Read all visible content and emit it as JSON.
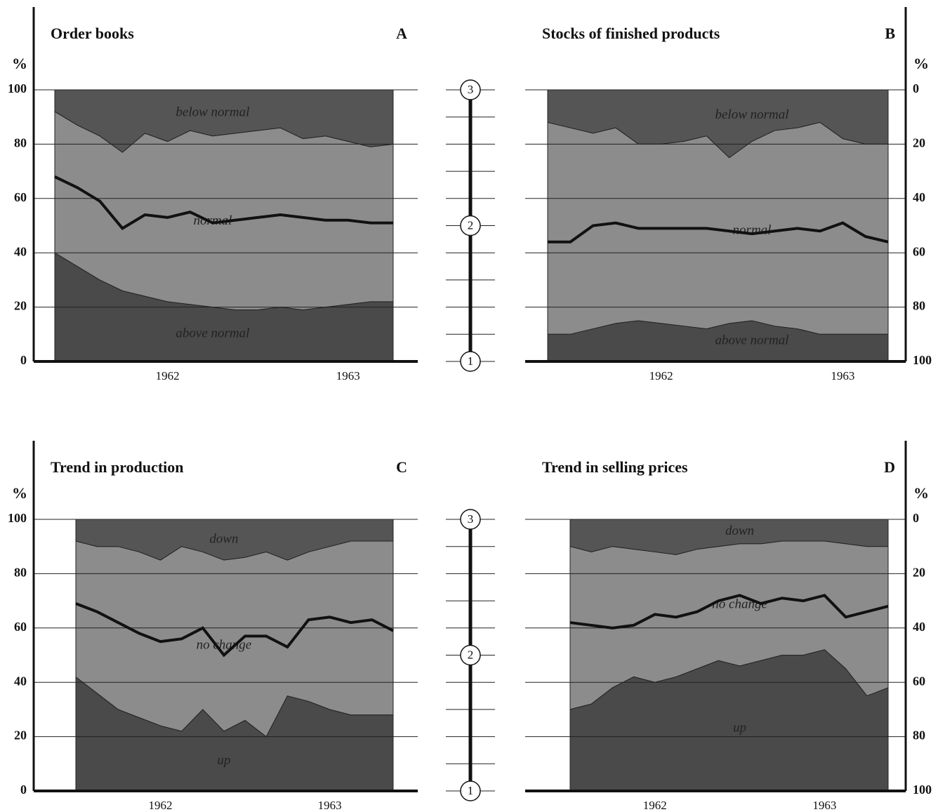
{
  "chart_data": [
    {
      "type": "area",
      "title": "Order books",
      "label": "A",
      "ylabel": "%",
      "axis_side": "left",
      "categories": [
        null,
        null,
        null,
        null,
        null,
        "1962",
        null,
        null,
        null,
        null,
        null,
        null,
        null,
        "1963",
        null,
        null
      ],
      "ylim": [
        0,
        100
      ],
      "yticks": [
        0,
        20,
        40,
        60,
        80,
        100
      ],
      "series": [
        {
          "name": "above normal",
          "color": "#4a4a4a",
          "values": [
            40,
            35,
            30,
            26,
            24,
            22,
            21,
            20,
            19,
            19,
            20,
            19,
            20,
            21,
            22,
            22
          ]
        },
        {
          "name": "normal",
          "color": "#8c8c8c",
          "values": [
            52,
            52,
            53,
            51,
            60,
            59,
            64,
            63,
            65,
            66,
            66,
            63,
            63,
            60,
            57,
            58
          ]
        },
        {
          "name": "below normal",
          "color": "#555555",
          "values": [
            8,
            13,
            17,
            23,
            16,
            19,
            15,
            17,
            16,
            15,
            14,
            18,
            17,
            19,
            21,
            20
          ]
        }
      ],
      "line": {
        "color": "#111111",
        "values": [
          68,
          64,
          59,
          49,
          54,
          53,
          55,
          51,
          52,
          53,
          54,
          53,
          52,
          52,
          51,
          51
        ]
      }
    },
    {
      "type": "area",
      "title": "Stocks of finished products",
      "label": "B",
      "ylabel": "%",
      "axis_side": "right",
      "categories": [
        null,
        null,
        null,
        null,
        null,
        "1962",
        null,
        null,
        null,
        null,
        null,
        null,
        null,
        "1963",
        null,
        null
      ],
      "ylim": [
        100,
        0
      ],
      "yticks": [
        0,
        20,
        40,
        60,
        80,
        100
      ],
      "series": [
        {
          "name": "below normal",
          "color": "#555555",
          "values": [
            12,
            14,
            16,
            14,
            20,
            20,
            19,
            17,
            25,
            19,
            15,
            14,
            12,
            18,
            20,
            20
          ]
        },
        {
          "name": "normal",
          "color": "#8c8c8c",
          "values": [
            78,
            76,
            72,
            72,
            65,
            66,
            68,
            71,
            61,
            66,
            72,
            74,
            78,
            72,
            70,
            70
          ]
        },
        {
          "name": "above normal",
          "color": "#4a4a4a",
          "values": [
            10,
            10,
            12,
            14,
            15,
            14,
            13,
            12,
            14,
            15,
            13,
            12,
            10,
            10,
            10,
            10
          ]
        }
      ],
      "line": {
        "color": "#111111",
        "values": [
          56,
          56,
          50,
          49,
          51,
          51,
          51,
          51,
          52,
          53,
          52,
          51,
          52,
          49,
          54,
          56
        ]
      }
    },
    {
      "type": "area",
      "title": "Trend in production",
      "label": "C",
      "ylabel": "%",
      "axis_side": "left",
      "categories": [
        null,
        null,
        null,
        null,
        "1962",
        null,
        null,
        null,
        null,
        null,
        null,
        null,
        "1963",
        null,
        null,
        null
      ],
      "ylim": [
        0,
        100
      ],
      "yticks": [
        0,
        20,
        40,
        60,
        80,
        100
      ],
      "series": [
        {
          "name": "up",
          "color": "#4a4a4a",
          "values": [
            42,
            36,
            30,
            27,
            24,
            22,
            30,
            22,
            26,
            20,
            35,
            33,
            30,
            28,
            28,
            28
          ]
        },
        {
          "name": "no change",
          "color": "#8c8c8c",
          "values": [
            50,
            54,
            60,
            61,
            61,
            68,
            58,
            63,
            60,
            68,
            50,
            55,
            60,
            64,
            64,
            64
          ]
        },
        {
          "name": "down",
          "color": "#555555",
          "values": [
            8,
            10,
            10,
            12,
            15,
            10,
            12,
            15,
            14,
            12,
            15,
            12,
            10,
            8,
            8,
            8
          ]
        }
      ],
      "line": {
        "color": "#111111",
        "values": [
          69,
          66,
          62,
          58,
          55,
          56,
          60,
          50,
          57,
          57,
          53,
          63,
          64,
          62,
          63,
          59
        ]
      }
    },
    {
      "type": "area",
      "title": "Trend in selling prices",
      "label": "D",
      "ylabel": "%",
      "axis_side": "right",
      "categories": [
        null,
        null,
        null,
        null,
        "1962",
        null,
        null,
        null,
        null,
        null,
        null,
        null,
        "1963",
        null,
        null,
        null
      ],
      "ylim": [
        100,
        0
      ],
      "yticks": [
        0,
        20,
        40,
        60,
        80,
        100
      ],
      "series": [
        {
          "name": "down",
          "color": "#555555",
          "values": [
            10,
            12,
            10,
            11,
            12,
            13,
            11,
            10,
            9,
            9,
            8,
            8,
            8,
            9,
            10,
            10
          ]
        },
        {
          "name": "no change",
          "color": "#8c8c8c",
          "values": [
            60,
            56,
            52,
            47,
            48,
            45,
            44,
            42,
            45,
            43,
            42,
            42,
            40,
            46,
            55,
            52
          ]
        },
        {
          "name": "up",
          "color": "#4a4a4a",
          "values": [
            30,
            32,
            38,
            42,
            40,
            42,
            45,
            48,
            46,
            48,
            50,
            50,
            52,
            45,
            35,
            38
          ]
        }
      ],
      "line": {
        "color": "#111111",
        "values": [
          38,
          39,
          40,
          39,
          35,
          36,
          34,
          30,
          28,
          31,
          29,
          30,
          28,
          36,
          34,
          32
        ]
      }
    }
  ],
  "scales": [
    {
      "ticks": [
        1,
        2,
        3
      ]
    },
    {
      "ticks": [
        1,
        2,
        3
      ]
    }
  ]
}
